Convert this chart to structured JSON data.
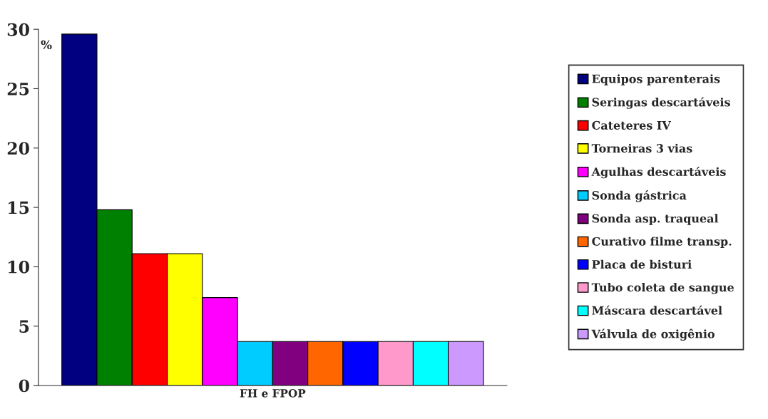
{
  "chart_data": {
    "type": "bar",
    "categories": [
      "FH e FPOP"
    ],
    "series": [
      {
        "name": "Equipos parenterais",
        "color": "#000080",
        "values": [
          29.6
        ]
      },
      {
        "name": "Seringas descartáveis",
        "color": "#008000",
        "values": [
          14.8
        ]
      },
      {
        "name": "Cateteres IV",
        "color": "#ff0000",
        "values": [
          11.1
        ]
      },
      {
        "name": "Torneiras 3 vias",
        "color": "#ffff00",
        "values": [
          11.1
        ]
      },
      {
        "name": "Agulhas descartáveis",
        "color": "#ff00ff",
        "values": [
          7.4
        ]
      },
      {
        "name": "Sonda gástrica",
        "color": "#00ccff",
        "values": [
          3.7
        ]
      },
      {
        "name": "Sonda asp. traqueal",
        "color": "#800080",
        "values": [
          3.7
        ]
      },
      {
        "name": "Curativo filme transp.",
        "color": "#ff6600",
        "values": [
          3.7
        ]
      },
      {
        "name": "Placa de bisturi",
        "color": "#0000ff",
        "values": [
          3.7
        ]
      },
      {
        "name": "Tubo coleta de sangue",
        "color": "#ff99cc",
        "values": [
          3.7
        ]
      },
      {
        "name": "Máscara descartável",
        "color": "#00ffff",
        "values": [
          3.7
        ]
      },
      {
        "name": "Válvula de oxigênio",
        "color": "#cc99ff",
        "values": [
          3.7
        ]
      }
    ],
    "ylim": [
      0,
      30
    ],
    "yticks": [
      0,
      5,
      10,
      15,
      20,
      25,
      30
    ],
    "grid": false,
    "legend": "right",
    "annotations": [
      "%"
    ]
  }
}
